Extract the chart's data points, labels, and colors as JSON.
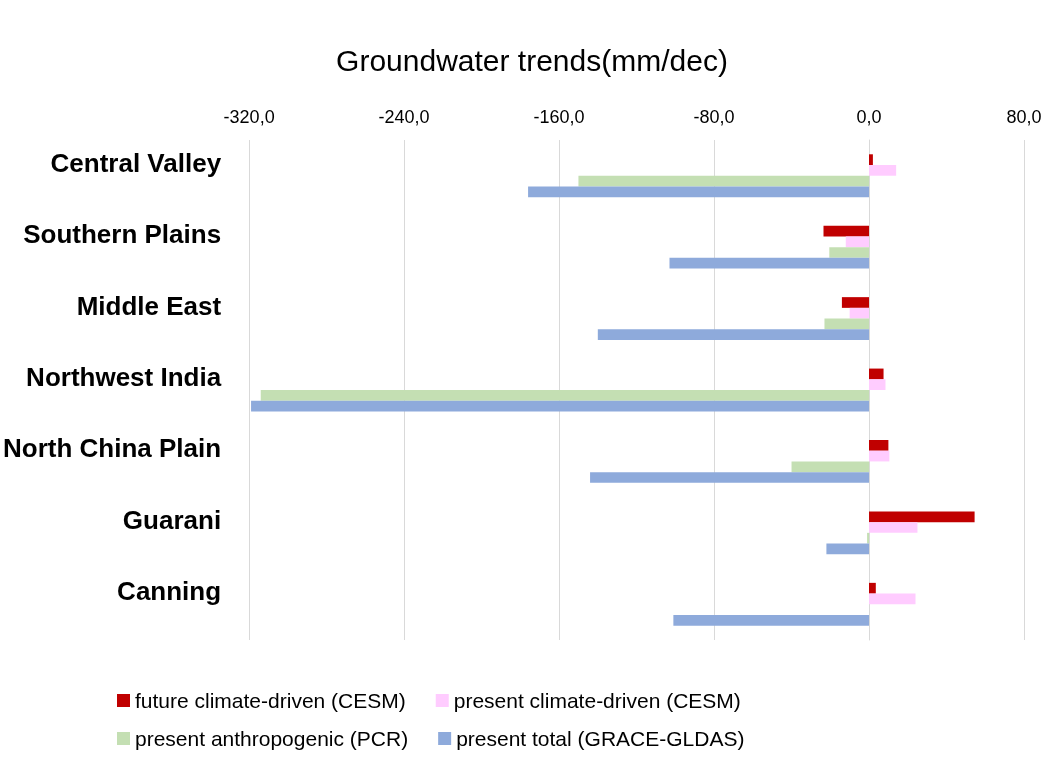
{
  "chart_data": {
    "type": "bar",
    "orientation": "horizontal",
    "title": "Groundwater trends(mm/dec)",
    "categories": [
      "Central Valley",
      "Southern Plains",
      "Middle East",
      "Northwest India",
      "North China Plain",
      "Guarani",
      "Canning"
    ],
    "series": [
      {
        "name": "future climate-driven (CESM)",
        "color": "#c00000",
        "values": [
          2,
          -23.5,
          -14,
          7.5,
          10,
          54.5,
          3.5
        ]
      },
      {
        "name": "present climate-driven (CESM)",
        "color": "#ffccff",
        "values": [
          14,
          -12,
          -10,
          8.5,
          10.5,
          25,
          24
        ]
      },
      {
        "name": "present anthropogenic (PCR)",
        "color": "#c4dfb3",
        "values": [
          -150,
          -20.5,
          -23,
          -314,
          -40,
          -1,
          null
        ]
      },
      {
        "name": "present total (GRACE-GLDAS)",
        "color": "#8eaadb",
        "values": [
          -176,
          -103,
          -140,
          -319,
          -144,
          -22,
          -101
        ]
      }
    ],
    "xlim": [
      -320,
      80
    ],
    "xticks": [
      {
        "value": -320,
        "label": "-320,0"
      },
      {
        "value": -240,
        "label": "-240,0"
      },
      {
        "value": -160,
        "label": "-160,0"
      },
      {
        "value": -80,
        "label": "-80,0"
      },
      {
        "value": 0,
        "label": "0,0"
      },
      {
        "value": 80,
        "label": "80,0"
      }
    ],
    "grid": "x",
    "legend": "bottom"
  }
}
